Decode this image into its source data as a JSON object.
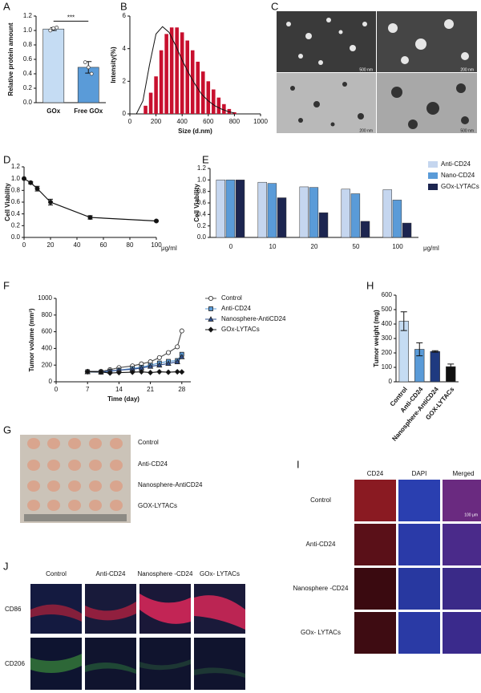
{
  "chart_data": [
    {
      "panel": "A",
      "type": "bar",
      "ylabel": "Relative protein amount",
      "categories": [
        "GOx",
        "Free GOx"
      ],
      "values": [
        1.02,
        0.49
      ],
      "errors": [
        0.02,
        0.08
      ],
      "points": [
        [
          1.0,
          1.03,
          1.04
        ],
        [
          0.56,
          0.49,
          0.4
        ]
      ],
      "colors": [
        "#c5dcf3",
        "#5a9bd8"
      ],
      "ylim": [
        0,
        1.2
      ],
      "yticks": [
        {
          "value": 0,
          "label": "0.0"
        },
        0.2,
        0.4,
        0.6,
        0.8,
        {
          "value": 1,
          "label": "1.0"
        },
        1.2
      ],
      "annotation": "***"
    },
    {
      "panel": "B",
      "type": "histogram",
      "xlabel": "Size (d.nm)",
      "ylabel": "Intensity(%)",
      "color": "#c8102e",
      "bins": [
        100,
        140,
        180,
        220,
        260,
        300,
        340,
        380,
        420,
        460,
        500,
        540,
        580,
        620,
        660,
        700,
        740,
        780,
        820
      ],
      "counts": [
        0.5,
        1.3,
        2.3,
        3.9,
        4.9,
        5.3,
        5.3,
        5.0,
        4.5,
        3.9,
        3.2,
        2.6,
        2.0,
        1.5,
        1.0,
        0.6,
        0.3,
        0.1
      ],
      "fit": {
        "x": [
          50,
          100,
          150,
          200,
          250,
          300,
          350,
          400,
          450,
          500,
          550,
          600,
          650,
          700,
          750,
          800
        ],
        "values": [
          0,
          0.8,
          3.0,
          4.9,
          5.35,
          5.0,
          4.2,
          3.3,
          2.5,
          1.8,
          1.2,
          0.8,
          0.5,
          0.3,
          0.15,
          0.05
        ]
      },
      "xlim": [
        0,
        1000
      ],
      "xticks": [
        0,
        200,
        400,
        600,
        800,
        1000
      ],
      "ylim": [
        0,
        6
      ],
      "yticks": [
        0,
        2,
        4,
        6
      ]
    },
    {
      "panel": "D",
      "type": "line",
      "ylabel": "Cell Viability",
      "xunit": "μg/ml",
      "color": "#111111",
      "x": [
        0,
        5,
        10,
        20,
        50,
        100
      ],
      "values": [
        1.0,
        0.93,
        0.83,
        0.6,
        0.34,
        0.28
      ],
      "errors": [
        0,
        0.02,
        0.04,
        0.05,
        0.03,
        0.01
      ],
      "xlim": [
        0,
        100
      ],
      "xticks": [
        0,
        20,
        40,
        60,
        80,
        100
      ],
      "ylim": [
        0,
        1.2
      ],
      "yticks": [
        {
          "value": 0,
          "label": "0.0"
        },
        0.2,
        0.4,
        0.6,
        0.8,
        {
          "value": 1,
          "label": "1.0"
        },
        1.2
      ]
    },
    {
      "panel": "E",
      "type": "grouped_bar",
      "ylabel": "Cell Viability",
      "xunit": "μg/ml",
      "legend": "right",
      "categories": [
        "0",
        "10",
        "20",
        "50",
        "100"
      ],
      "series": [
        {
          "name": "Anti-CD24",
          "color": "#c5d6ef",
          "values": [
            1.0,
            0.96,
            0.88,
            0.84,
            0.83
          ]
        },
        {
          "name": "Nano-CD24",
          "color": "#5a9bd8",
          "values": [
            1.0,
            0.94,
            0.87,
            0.76,
            0.65
          ]
        },
        {
          "name": "GOx-LYTACs",
          "color": "#1c2550",
          "values": [
            1.0,
            0.69,
            0.43,
            0.28,
            0.25
          ]
        }
      ],
      "ylim": [
        0,
        1.2
      ],
      "yticks": [
        {
          "value": 0,
          "label": "0.0"
        },
        0.2,
        0.4,
        0.6,
        0.8,
        {
          "value": 1,
          "label": "1.0"
        },
        1.2
      ]
    },
    {
      "panel": "F",
      "type": "line",
      "xlabel": "Time (day)",
      "ylabel": "Tumor volume (mm³)",
      "legend": "right",
      "x": [
        7,
        10,
        12,
        14,
        17,
        19,
        21,
        23,
        25,
        27,
        28
      ],
      "series": [
        {
          "name": "Control",
          "color": "#ffffff",
          "marker": "circle",
          "values": [
            125,
            125,
            145,
            170,
            190,
            215,
            240,
            290,
            350,
            420,
            610
          ]
        },
        {
          "name": "Anti-CD24",
          "color": "#5a9bd8",
          "marker": "square",
          "values": [
            120,
            115,
            125,
            140,
            160,
            175,
            200,
            225,
            245,
            255,
            330
          ]
        },
        {
          "name": "Nanosphere-AntiCD24",
          "color": "#2f4f8f",
          "marker": "triangle",
          "values": [
            120,
            120,
            130,
            140,
            150,
            165,
            185,
            200,
            220,
            240,
            300
          ]
        },
        {
          "name": "GOx-LYTACs",
          "color": "#111111",
          "marker": "diamond",
          "values": [
            120,
            118,
            105,
            110,
            115,
            120,
            110,
            120,
            115,
            120,
            118
          ]
        }
      ],
      "xlim": [
        0,
        30
      ],
      "xticks": [
        0,
        7,
        14,
        21,
        28
      ],
      "ylim": [
        0,
        1000
      ],
      "yticks": [
        0,
        200,
        400,
        600,
        800,
        1000
      ]
    },
    {
      "panel": "H",
      "type": "bar",
      "ylabel": "Tumor weight (mg)",
      "categories": [
        "Control",
        "Anti-CD24",
        "Nanosphere-AntiCD24",
        "GOX-LYTACs"
      ],
      "values": [
        420,
        225,
        210,
        105
      ],
      "errors": [
        65,
        45,
        5,
        18
      ],
      "colors": [
        "#c5dcf3",
        "#5a9bd8",
        "#1f3a80",
        "#111111"
      ],
      "ylim": [
        0,
        600
      ],
      "yticks": [
        0,
        100,
        200,
        300,
        400,
        500,
        600
      ]
    }
  ],
  "images": {
    "C": {
      "panel": "C",
      "scale_labels": [
        "500 nm",
        "200 nm",
        "200 nm",
        "500 nm"
      ]
    },
    "G": {
      "panel": "G",
      "rows": [
        "Control",
        "Anti-CD24",
        "Nanosphere-AntiCD24",
        "GOX-LYTACs"
      ]
    },
    "I": {
      "panel": "I",
      "columns": [
        "CD24",
        "DAPI",
        "Merged"
      ],
      "rows": [
        "Control",
        "Anti-CD24",
        "Nanosphere -CD24",
        "GOx- LYTACs"
      ],
      "scale_label": "100 μm"
    },
    "J": {
      "panel": "J",
      "columns": [
        "Control",
        "Anti-CD24",
        "Nanosphere -CD24",
        "GOx- LYTACs"
      ],
      "rows": [
        "CD86",
        "CD206"
      ]
    }
  }
}
